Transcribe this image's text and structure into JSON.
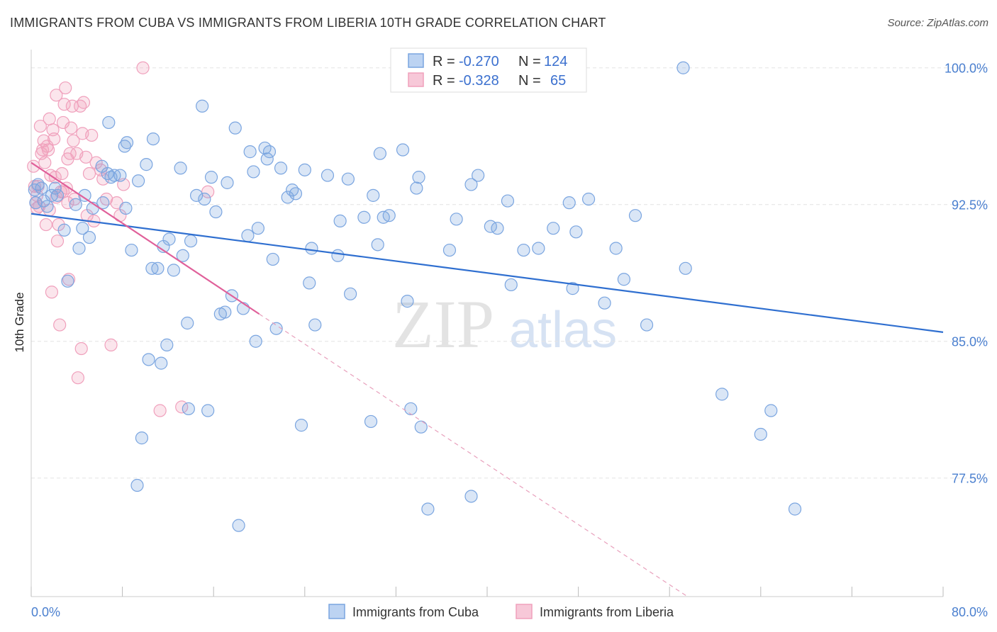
{
  "title": "IMMIGRANTS FROM CUBA VS IMMIGRANTS FROM LIBERIA 10TH GRADE CORRELATION CHART",
  "source": "Source: ZipAtlas.com",
  "watermark": {
    "zip": "ZIP",
    "atlas": "atlas"
  },
  "chart_data": {
    "type": "scatter",
    "title": "IMMIGRANTS FROM CUBA VS IMMIGRANTS FROM LIBERIA 10TH GRADE CORRELATION CHART",
    "xlabel": "",
    "ylabel": "10th Grade",
    "xlim": [
      0,
      80
    ],
    "ylim": [
      71.0,
      101.0
    ],
    "x_tick_labels": [
      "0.0%",
      "80.0%"
    ],
    "y_ticks": [
      77.5,
      85.0,
      92.5,
      100.0
    ],
    "y_tick_labels": [
      "77.5%",
      "85.0%",
      "92.5%",
      "100.0%"
    ],
    "grid": true,
    "legend_position": "top-center",
    "series": [
      {
        "name": "Immigrants from Cuba",
        "color": "#7aa5e0",
        "line_color": "#2f6fd0",
        "R": "-0.270",
        "N": "124",
        "trend": {
          "x0": 0,
          "y0": 92.0,
          "x1": 80,
          "y1": 85.5
        },
        "points": [
          [
            0.3,
            93.3
          ],
          [
            0.4,
            92.6
          ],
          [
            0.6,
            93.6
          ],
          [
            0.9,
            93.4
          ],
          [
            1.1,
            92.7
          ],
          [
            1.4,
            92.4
          ],
          [
            1.8,
            93.0
          ],
          [
            2.1,
            93.4
          ],
          [
            2.3,
            93.0
          ],
          [
            2.9,
            91.1
          ],
          [
            3.2,
            88.3
          ],
          [
            3.9,
            92.5
          ],
          [
            4.2,
            90.1
          ],
          [
            4.5,
            91.2
          ],
          [
            4.7,
            93.0
          ],
          [
            5.1,
            90.7
          ],
          [
            5.4,
            92.3
          ],
          [
            6.3,
            92.6
          ],
          [
            6.2,
            94.6
          ],
          [
            6.7,
            94.2
          ],
          [
            7.0,
            94.0
          ],
          [
            6.8,
            97.0
          ],
          [
            7.3,
            94.1
          ],
          [
            7.8,
            94.1
          ],
          [
            8.2,
            95.7
          ],
          [
            8.4,
            95.9
          ],
          [
            8.3,
            92.3
          ],
          [
            8.8,
            90.0
          ],
          [
            9.4,
            93.8
          ],
          [
            9.7,
            79.7
          ],
          [
            9.3,
            77.1
          ],
          [
            10.1,
            94.7
          ],
          [
            10.3,
            84.0
          ],
          [
            10.6,
            89.0
          ],
          [
            10.7,
            96.1
          ],
          [
            11.1,
            89.0
          ],
          [
            11.4,
            83.8
          ],
          [
            11.9,
            84.8
          ],
          [
            11.6,
            90.2
          ],
          [
            12.1,
            90.6
          ],
          [
            12.5,
            88.9
          ],
          [
            13.1,
            94.5
          ],
          [
            13.3,
            89.7
          ],
          [
            13.7,
            86.0
          ],
          [
            13.8,
            81.3
          ],
          [
            14.0,
            90.5
          ],
          [
            14.5,
            93.0
          ],
          [
            15.0,
            97.9
          ],
          [
            15.2,
            92.8
          ],
          [
            15.8,
            94.0
          ],
          [
            15.5,
            81.2
          ],
          [
            16.2,
            92.1
          ],
          [
            16.6,
            86.5
          ],
          [
            17.0,
            86.6
          ],
          [
            17.2,
            93.7
          ],
          [
            17.6,
            87.5
          ],
          [
            17.9,
            96.7
          ],
          [
            18.6,
            86.8
          ],
          [
            18.2,
            74.9
          ],
          [
            19.0,
            90.8
          ],
          [
            19.2,
            95.4
          ],
          [
            19.5,
            94.3
          ],
          [
            19.9,
            91.2
          ],
          [
            19.7,
            85.0
          ],
          [
            20.5,
            95.6
          ],
          [
            20.9,
            95.4
          ],
          [
            20.7,
            95.0
          ],
          [
            21.2,
            89.5
          ],
          [
            21.5,
            85.7
          ],
          [
            21.9,
            94.5
          ],
          [
            22.5,
            92.9
          ],
          [
            22.9,
            93.3
          ],
          [
            23.2,
            93.1
          ],
          [
            23.7,
            80.4
          ],
          [
            24.0,
            94.4
          ],
          [
            24.4,
            88.2
          ],
          [
            24.6,
            90.1
          ],
          [
            24.9,
            85.9
          ],
          [
            26.0,
            94.1
          ],
          [
            26.9,
            89.7
          ],
          [
            27.1,
            91.6
          ],
          [
            27.8,
            93.9
          ],
          [
            28.0,
            87.6
          ],
          [
            29.2,
            91.8
          ],
          [
            30.0,
            93.0
          ],
          [
            30.6,
            95.3
          ],
          [
            29.8,
            80.6
          ],
          [
            30.9,
            91.8
          ],
          [
            30.4,
            90.3
          ],
          [
            31.4,
            91.9
          ],
          [
            32.6,
            95.5
          ],
          [
            33.0,
            87.2
          ],
          [
            33.3,
            81.3
          ],
          [
            33.8,
            93.4
          ],
          [
            34.0,
            94.0
          ],
          [
            34.2,
            80.3
          ],
          [
            34.8,
            75.8
          ],
          [
            36.7,
            90.0
          ],
          [
            37.3,
            91.7
          ],
          [
            38.6,
            93.6
          ],
          [
            39.2,
            94.1
          ],
          [
            38.6,
            76.5
          ],
          [
            40.3,
            91.3
          ],
          [
            40.9,
            91.2
          ],
          [
            41.8,
            92.7
          ],
          [
            42.1,
            88.1
          ],
          [
            43.2,
            90.0
          ],
          [
            44.5,
            90.1
          ],
          [
            45.8,
            91.2
          ],
          [
            47.2,
            92.6
          ],
          [
            47.5,
            87.9
          ],
          [
            47.8,
            91.0
          ],
          [
            48.9,
            92.8
          ],
          [
            50.3,
            87.1
          ],
          [
            51.3,
            90.1
          ],
          [
            52.0,
            88.4
          ],
          [
            53.0,
            91.9
          ],
          [
            54.0,
            85.9
          ],
          [
            57.2,
            100.0
          ],
          [
            57.4,
            89.0
          ],
          [
            60.6,
            82.1
          ],
          [
            64.0,
            79.9
          ],
          [
            64.9,
            81.2
          ],
          [
            67.0,
            75.8
          ]
        ]
      },
      {
        "name": "Immigrants from Liberia",
        "color": "#f0a0bc",
        "line_color": "#e0609a",
        "R": "-0.328",
        "N": "65",
        "trend": {
          "x0": 0,
          "y0": 94.8,
          "x1": 20.0,
          "y1": 86.5
        },
        "trend_dashed": {
          "x0": 20.0,
          "y0": 86.5,
          "x1": 60.0,
          "y1": 70.0
        },
        "points": [
          [
            0.2,
            94.6
          ],
          [
            0.3,
            93.5
          ],
          [
            0.4,
            92.6
          ],
          [
            0.5,
            92.3
          ],
          [
            0.6,
            93.5
          ],
          [
            0.7,
            92.4
          ],
          [
            0.9,
            95.3
          ],
          [
            1.0,
            95.5
          ],
          [
            1.1,
            96.0
          ],
          [
            1.2,
            94.8
          ],
          [
            1.3,
            91.4
          ],
          [
            1.4,
            95.7
          ],
          [
            1.5,
            95.5
          ],
          [
            1.6,
            97.2
          ],
          [
            1.7,
            94.1
          ],
          [
            1.8,
            87.7
          ],
          [
            1.9,
            96.6
          ],
          [
            2.0,
            96.1
          ],
          [
            2.1,
            94.0
          ],
          [
            2.2,
            98.5
          ],
          [
            2.3,
            90.5
          ],
          [
            2.4,
            91.4
          ],
          [
            2.5,
            85.9
          ],
          [
            2.6,
            93.2
          ],
          [
            2.7,
            94.2
          ],
          [
            2.8,
            97.0
          ],
          [
            2.9,
            98.0
          ],
          [
            3.0,
            98.9
          ],
          [
            3.1,
            93.4
          ],
          [
            3.2,
            95.0
          ],
          [
            3.3,
            88.4
          ],
          [
            3.4,
            95.3
          ],
          [
            3.5,
            96.7
          ],
          [
            3.6,
            97.9
          ],
          [
            3.7,
            96.0
          ],
          [
            3.8,
            92.8
          ],
          [
            4.0,
            95.3
          ],
          [
            4.1,
            83.0
          ],
          [
            4.3,
            97.9
          ],
          [
            4.4,
            84.6
          ],
          [
            4.5,
            96.4
          ],
          [
            4.6,
            98.1
          ],
          [
            4.8,
            95.1
          ],
          [
            4.9,
            91.9
          ],
          [
            5.1,
            94.2
          ],
          [
            5.3,
            96.3
          ],
          [
            5.5,
            91.6
          ],
          [
            5.7,
            94.8
          ],
          [
            6.1,
            94.4
          ],
          [
            6.3,
            93.9
          ],
          [
            6.6,
            92.8
          ],
          [
            7.0,
            84.8
          ],
          [
            7.5,
            92.6
          ],
          [
            7.8,
            91.9
          ],
          [
            8.1,
            93.6
          ],
          [
            9.8,
            100.0
          ],
          [
            11.3,
            81.2
          ],
          [
            13.2,
            81.4
          ],
          [
            15.5,
            93.2
          ],
          [
            0.5,
            93.0
          ],
          [
            1.6,
            92.2
          ],
          [
            2.2,
            92.9
          ],
          [
            2.8,
            93.2
          ],
          [
            3.2,
            92.6
          ],
          [
            0.8,
            96.8
          ]
        ]
      }
    ]
  }
}
